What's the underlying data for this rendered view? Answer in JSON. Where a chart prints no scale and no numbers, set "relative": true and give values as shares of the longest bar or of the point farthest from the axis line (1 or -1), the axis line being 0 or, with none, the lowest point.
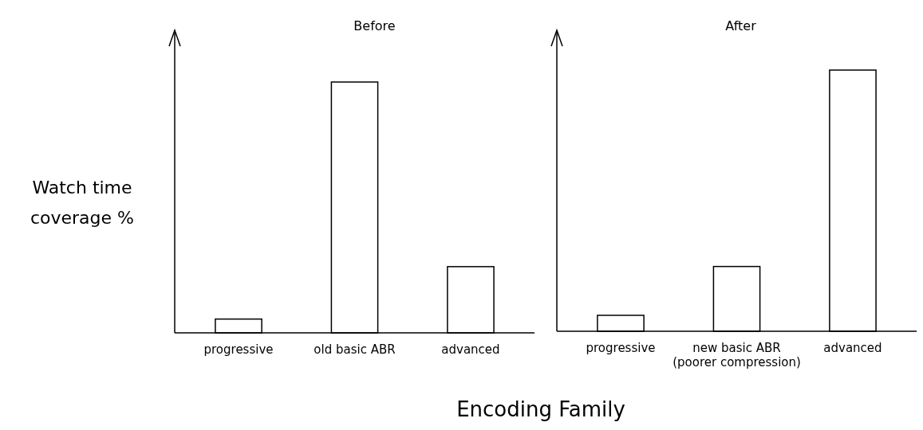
{
  "chart_data": [
    {
      "type": "bar",
      "title": "Before",
      "ylabel": "Watch time coverage %",
      "relative": true,
      "categories": [
        "progressive",
        "old basic ABR",
        "advanced"
      ],
      "series": [
        {
          "color": "#ffffff",
          "values": [
            0.055,
            1,
            0.264
          ]
        }
      ]
    },
    {
      "type": "bar",
      "title": "After",
      "xlabel": "Encoding Family",
      "relative": true,
      "categories": [
        "progressive",
        "new basic ABR\n(poorer compression)",
        "advanced"
      ],
      "series": [
        {
          "color": "#ffffff",
          "values": [
            0.061,
            0.248,
            1
          ]
        }
      ]
    }
  ]
}
